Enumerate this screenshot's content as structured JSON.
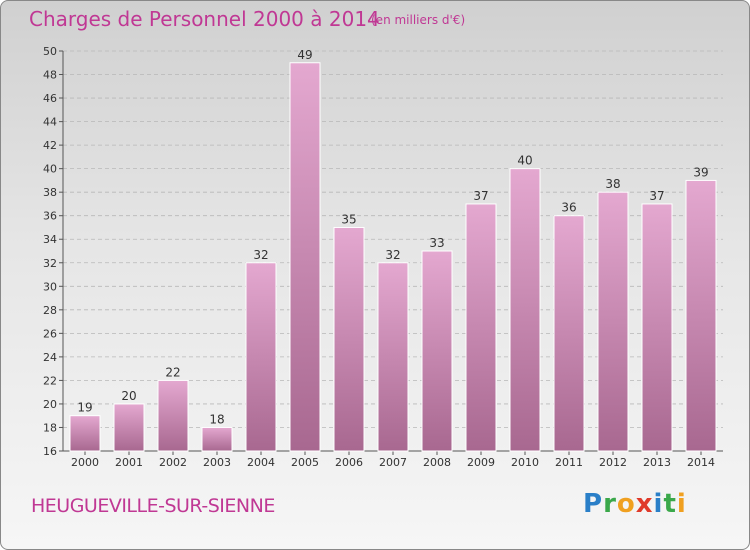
{
  "header": {
    "title": "Charges de Personnel 2000 à 2014",
    "subtitle": "(en milliers d'€)"
  },
  "footer": {
    "commune": "HEUGUEVILLE-SUR-SIENNE",
    "logo_letters": [
      "P",
      "r",
      "o",
      "x",
      "i",
      "t",
      "i"
    ],
    "logo_colors": [
      "#2a7fc8",
      "#3aa84a",
      "#f0a020",
      "#e03a2a",
      "#2a7fc8",
      "#3aa84a",
      "#f0a020"
    ]
  },
  "chart_data": {
    "type": "bar",
    "title": "Charges de Personnel 2000 à 2014",
    "subtitle": "(en milliers d'€)",
    "categories": [
      "2000",
      "2001",
      "2002",
      "2003",
      "2004",
      "2005",
      "2006",
      "2007",
      "2008",
      "2009",
      "2010",
      "2011",
      "2012",
      "2013",
      "2014"
    ],
    "values": [
      19,
      20,
      22,
      18,
      32,
      49,
      35,
      32,
      33,
      37,
      40,
      36,
      38,
      37,
      39
    ],
    "ylim": [
      16,
      50
    ],
    "ytick_step": 2,
    "grid": true,
    "legend": "none",
    "bar_color_top": "#e4a8d0",
    "bar_color_bottom": "#a86890"
  }
}
